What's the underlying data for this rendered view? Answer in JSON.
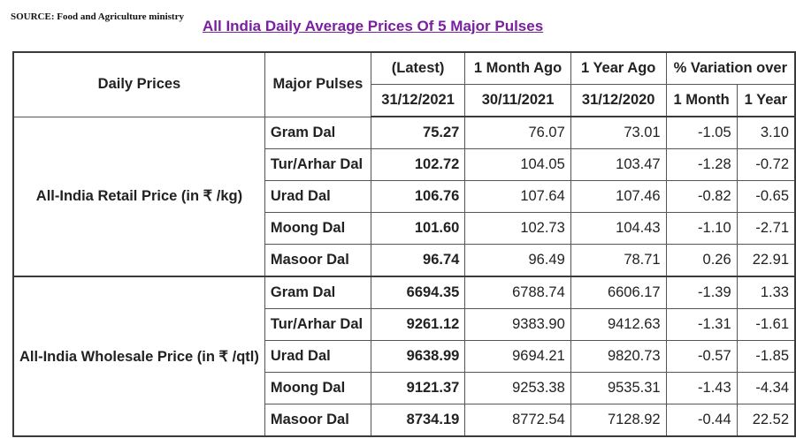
{
  "source": "SOURCE: Food and Agriculture ministry",
  "title": "All India Daily Average Prices Of 5 Major Pulses",
  "header": {
    "daily_prices": "Daily Prices",
    "major_pulses": "Major Pulses",
    "latest": "(Latest)",
    "latest_date": "31/12/2021",
    "month_ago": "1 Month Ago",
    "month_ago_date": "30/11/2021",
    "year_ago": "1 Year Ago",
    "year_ago_date": "31/12/2020",
    "variation": "% Variation over",
    "var_month": "1 Month",
    "var_year": "1 Year"
  },
  "groups": [
    {
      "label": "All-India Retail Price (in ₹ /kg)",
      "rows": [
        {
          "name": "Gram Dal",
          "latest": "75.27",
          "month_ago": "76.07",
          "year_ago": "73.01",
          "var_month": "-1.05",
          "var_year": "3.10"
        },
        {
          "name": "Tur/Arhar Dal",
          "latest": "102.72",
          "month_ago": "104.05",
          "year_ago": "103.47",
          "var_month": "-1.28",
          "var_year": "-0.72"
        },
        {
          "name": "Urad Dal",
          "latest": "106.76",
          "month_ago": "107.64",
          "year_ago": "107.46",
          "var_month": "-0.82",
          "var_year": "-0.65"
        },
        {
          "name": "Moong Dal",
          "latest": "101.60",
          "month_ago": "102.73",
          "year_ago": "104.43",
          "var_month": "-1.10",
          "var_year": "-2.71"
        },
        {
          "name": "Masoor Dal",
          "latest": "96.74",
          "month_ago": "96.49",
          "year_ago": "78.71",
          "var_month": "0.26",
          "var_year": "22.91"
        }
      ]
    },
    {
      "label": "All-India Wholesale Price (in ₹ /qtl)",
      "rows": [
        {
          "name": "Gram Dal",
          "latest": "6694.35",
          "month_ago": "6788.74",
          "year_ago": "6606.17",
          "var_month": "-1.39",
          "var_year": "1.33"
        },
        {
          "name": "Tur/Arhar Dal",
          "latest": "9261.12",
          "month_ago": "9383.90",
          "year_ago": "9412.63",
          "var_month": "-1.31",
          "var_year": "-1.61"
        },
        {
          "name": "Urad Dal",
          "latest": "9638.99",
          "month_ago": "9694.21",
          "year_ago": "9820.73",
          "var_month": "-0.57",
          "var_year": "-1.85"
        },
        {
          "name": "Moong Dal",
          "latest": "9121.37",
          "month_ago": "9253.38",
          "year_ago": "9535.31",
          "var_month": "-1.43",
          "var_year": "-4.34"
        },
        {
          "name": "Masoor Dal",
          "latest": "8734.19",
          "month_ago": "8772.54",
          "year_ago": "7128.92",
          "var_month": "-0.44",
          "var_year": "22.52"
        }
      ]
    }
  ]
}
